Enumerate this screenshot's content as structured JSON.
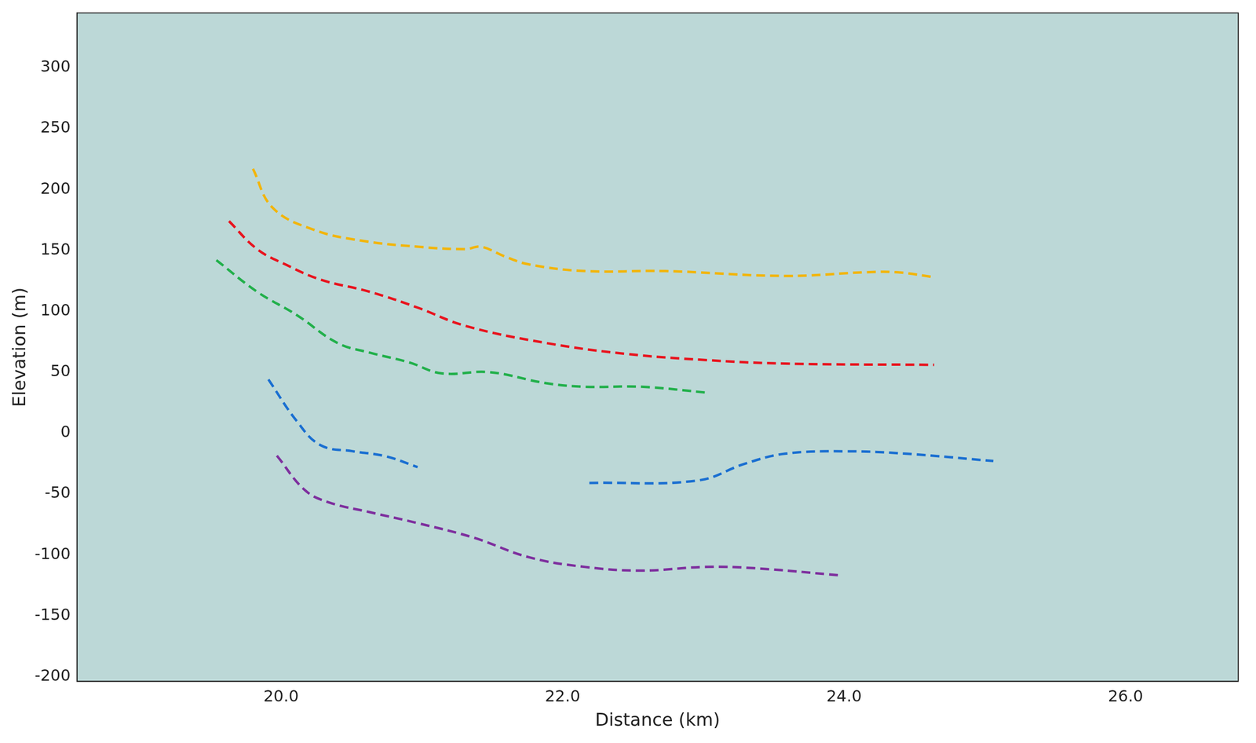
{
  "chart_data": {
    "type": "line",
    "x_label": "Distance (km)",
    "y_label": "Elevation (m)",
    "xlim": [
      18.55,
      26.8
    ],
    "xticks": [
      {
        "value": 20,
        "label": "20.0"
      },
      {
        "value": 22,
        "label": "22.0"
      },
      {
        "value": 24,
        "label": "24.0"
      },
      {
        "value": 26,
        "label": "26.0"
      }
    ],
    "ylim": [
      -204,
      345
    ],
    "yticks": [
      -200,
      -150,
      -100,
      -50,
      0,
      50,
      100,
      150,
      200,
      250,
      300
    ],
    "grid": false,
    "line_style": "dashed",
    "series": [
      {
        "color": "#f2b50a",
        "x": [
          19.8,
          19.94,
          20.23,
          20.57,
          20.97,
          21.31,
          21.42,
          21.59,
          21.76,
          22.16,
          22.73,
          23.58,
          24.15,
          24.38,
          24.64
        ],
        "values": [
          217,
          185,
          167,
          158,
          153,
          151,
          153,
          145,
          138.5,
          133,
          133,
          129,
          132,
          132,
          128
        ]
      },
      {
        "color": "#e8141e",
        "x": [
          19.63,
          19.83,
          20.03,
          20.28,
          20.63,
          20.97,
          21.31,
          21.88,
          22.45,
          23.01,
          23.58,
          24.64
        ],
        "values": [
          174,
          151,
          138.5,
          126,
          116,
          103,
          88,
          74,
          65,
          60,
          57,
          56
        ]
      },
      {
        "color": "#22b04b",
        "x": [
          19.54,
          19.83,
          20.11,
          20.4,
          20.63,
          20.91,
          21.14,
          21.48,
          21.88,
          22.16,
          22.56,
          23.04
        ],
        "values": [
          142,
          116,
          97,
          74,
          66,
          58,
          49,
          50,
          41,
          38,
          38,
          33
        ]
      },
      {
        "color": "#1a6fd1",
        "x": [
          19.91,
          20.11,
          20.28,
          20.51,
          20.74,
          20.97
        ],
        "values": [
          44,
          10,
          -10,
          -15,
          -19,
          -28
        ]
      },
      {
        "color": "#1a6fd1",
        "x": [
          22.19,
          22.96,
          23.3,
          23.58,
          24.01,
          24.44,
          25.06
        ],
        "values": [
          -41,
          -39,
          -25,
          -17,
          -15,
          -17,
          -23
        ]
      },
      {
        "color": "#7e2f9e",
        "x": [
          19.97,
          20.17,
          20.34,
          20.63,
          20.97,
          21.37,
          21.76,
          22.16,
          22.56,
          23.01,
          23.36,
          23.98
        ],
        "values": [
          -18.6,
          -47,
          -57,
          -65,
          -74,
          -86,
          -102,
          -110,
          -113,
          -110,
          -111,
          -117
        ]
      }
    ]
  }
}
